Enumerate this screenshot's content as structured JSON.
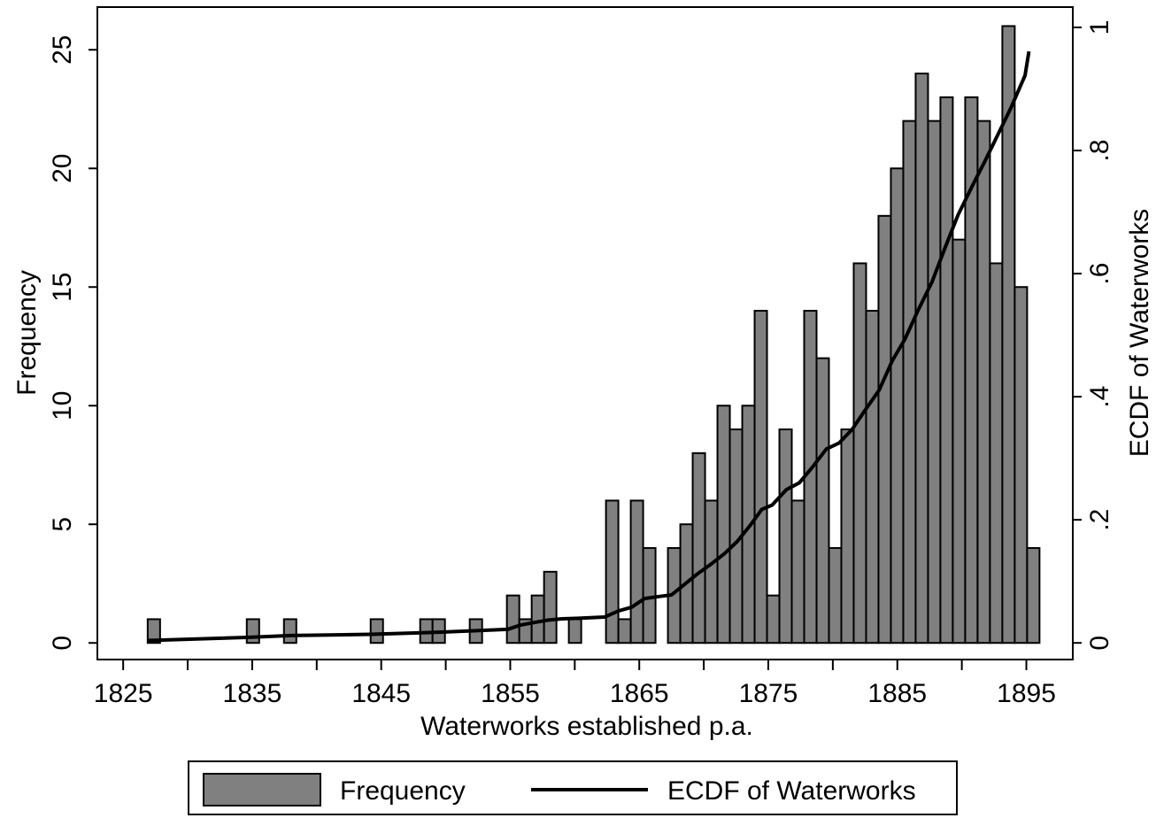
{
  "chart_data": {
    "type": "histogram",
    "xlabel": "Waterworks established p.a.",
    "ylabel": "Frequency",
    "y2label": "ECDF of Waterworks",
    "bins": [
      1826.9,
      1827.86,
      1828.82,
      1829.78,
      1830.74,
      1831.7,
      1832.66,
      1833.62,
      1834.58,
      1835.54,
      1836.5,
      1837.46,
      1838.42,
      1839.38,
      1840.34,
      1841.3,
      1842.26,
      1843.22,
      1844.18,
      1845.14,
      1846.1,
      1847.06,
      1848.02,
      1848.98,
      1849.94,
      1850.9,
      1851.86,
      1852.82,
      1853.78,
      1854.74,
      1855.7,
      1856.66,
      1857.62,
      1858.58,
      1859.54,
      1860.5,
      1861.46,
      1862.42,
      1863.38,
      1864.34,
      1865.3,
      1866.26,
      1867.22,
      1868.18,
      1869.14,
      1870.1,
      1871.06,
      1872.02,
      1872.98,
      1873.94,
      1874.9,
      1875.86,
      1876.82,
      1877.78,
      1878.74,
      1879.7,
      1880.66,
      1881.62,
      1882.58,
      1883.54,
      1884.5,
      1885.46,
      1886.42,
      1887.38,
      1888.34,
      1889.3,
      1890.26,
      1891.22,
      1892.18,
      1893.14,
      1894.1,
      1895.06,
      1896.02
    ],
    "series": [
      {
        "name": "Frequency",
        "type": "histogram",
        "color": "#808080",
        "values": [
          1,
          0,
          0,
          0,
          0,
          0,
          0,
          0,
          1,
          0,
          0,
          1,
          0,
          0,
          0,
          0,
          0,
          0,
          1,
          0,
          0,
          0,
          1,
          1,
          0,
          0,
          1,
          0,
          0,
          2,
          1,
          2,
          3,
          0,
          1,
          0,
          0,
          6,
          1,
          6,
          4,
          0,
          4,
          5,
          8,
          6,
          10,
          9,
          10,
          14,
          2,
          9,
          6,
          14,
          12,
          4,
          9,
          16,
          14,
          18,
          20,
          22,
          24,
          22,
          23,
          17,
          23,
          22,
          16,
          26,
          15,
          4
        ]
      },
      {
        "name": "ECDF of Waterworks",
        "type": "line",
        "color": "#000000",
        "axis": "y2",
        "x": [
          1826.9,
          1834.6,
          1838.0,
          1844.2,
          1849.0,
          1852.4,
          1854.8,
          1855.8,
          1856.8,
          1857.9,
          1858.9,
          1860.3,
          1862.3,
          1863.4,
          1864.4,
          1865.4,
          1866.4,
          1867.5,
          1868.5,
          1869.5,
          1870.5,
          1871.6,
          1872.6,
          1873.6,
          1874.5,
          1875.3,
          1876.4,
          1877.4,
          1878.4,
          1879.5,
          1880.5,
          1881.5,
          1882.5,
          1883.6,
          1884.6,
          1885.6,
          1886.6,
          1887.7,
          1888.7,
          1889.7,
          1890.8,
          1891.8,
          1892.8,
          1893.8,
          1894.9,
          1895.2
        ],
        "values": [
          0.004,
          0.009,
          0.012,
          0.014,
          0.017,
          0.02,
          0.022,
          0.029,
          0.033,
          0.037,
          0.039,
          0.04,
          0.042,
          0.052,
          0.058,
          0.072,
          0.075,
          0.078,
          0.095,
          0.112,
          0.127,
          0.145,
          0.165,
          0.191,
          0.217,
          0.224,
          0.249,
          0.26,
          0.285,
          0.315,
          0.325,
          0.347,
          0.378,
          0.411,
          0.458,
          0.494,
          0.54,
          0.587,
          0.642,
          0.695,
          0.742,
          0.783,
          0.826,
          0.869,
          0.922,
          0.961
        ]
      }
    ],
    "xlim": [
      1823,
      1898.6
    ],
    "ylim": [
      -0.7,
      26.8
    ],
    "y2lim": [
      -0.027,
      1.033
    ],
    "xticks": [
      1825,
      1835,
      1845,
      1855,
      1865,
      1875,
      1885,
      1895
    ],
    "xminorticks": [
      1830,
      1840,
      1850,
      1860,
      1870,
      1880,
      1890
    ],
    "yticks": [
      0,
      5,
      10,
      15,
      20,
      25
    ],
    "y2ticks": [
      0,
      {
        "value": 0.2,
        "label": ".2"
      },
      {
        "value": 0.4,
        "label": ".4"
      },
      {
        "value": 0.6,
        "label": ".6"
      },
      {
        "value": 0.8,
        "label": ".8"
      },
      1
    ],
    "legend": "bottom"
  }
}
